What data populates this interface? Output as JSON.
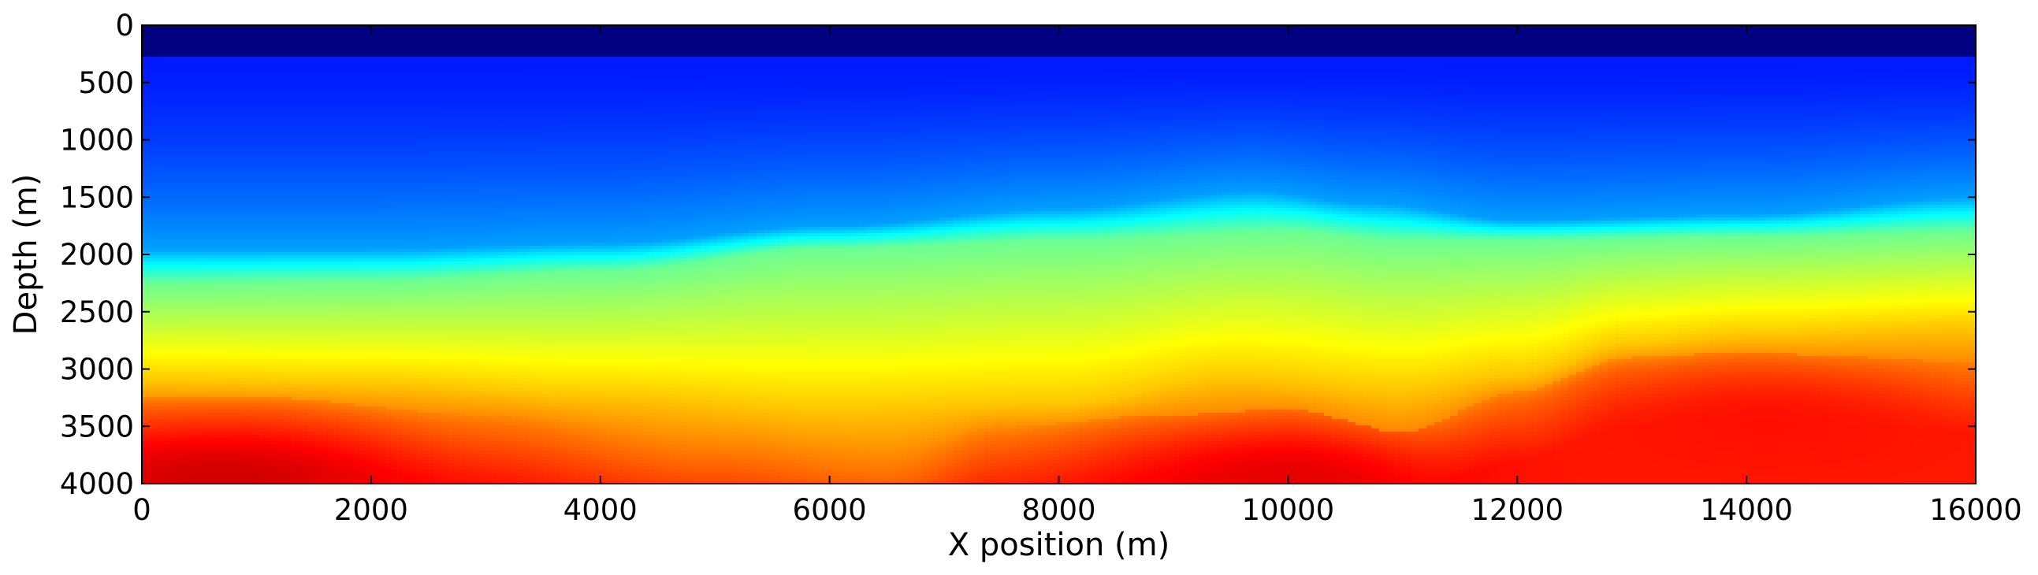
{
  "chart_data": {
    "type": "heatmap",
    "title": "",
    "xlabel": "X position (m)",
    "ylabel": "Depth (m)",
    "xlim": [
      0,
      16000
    ],
    "ylim": [
      4000,
      0
    ],
    "y_inverted": true,
    "grid": false,
    "colorbar": false,
    "colormap": "jet",
    "x_ticks": [
      0,
      2000,
      4000,
      6000,
      8000,
      10000,
      12000,
      14000,
      16000
    ],
    "y_ticks": [
      0,
      500,
      1000,
      1500,
      2000,
      2500,
      3000,
      3500,
      4000
    ],
    "x_tick_labels": [
      "0",
      "2000",
      "4000",
      "6000",
      "8000",
      "10000",
      "12000",
      "14000",
      "16000"
    ],
    "y_tick_labels": [
      "0",
      "500",
      "1000",
      "1500",
      "2000",
      "2500",
      "3000",
      "3500",
      "4000"
    ],
    "water_layer_depth": 280,
    "color_levels": {
      "water": 0.0,
      "shallow_blue": 0.15,
      "cyan_interface": 0.4,
      "green": 0.55,
      "yellow": 0.68,
      "deep_orange": 0.85
    },
    "interfaces": [
      {
        "name_meaning": "blue to cyan transition depth",
        "x": [
          0,
          2000,
          4000,
          6000,
          8000,
          9700,
          10700,
          12000,
          14000,
          16000
        ],
        "depth": [
          1950,
          1950,
          1900,
          1750,
          1600,
          1450,
          1550,
          1700,
          1650,
          1500
        ]
      },
      {
        "name_meaning": "cyan to green transition depth",
        "x": [
          0,
          2000,
          4000,
          6000,
          8000,
          10000,
          11000,
          12000,
          14000,
          16000
        ],
        "depth": [
          2250,
          2230,
          2150,
          1950,
          1880,
          1800,
          1880,
          1880,
          1850,
          1800
        ]
      },
      {
        "name_meaning": "green to yellow transition depth",
        "x": [
          0,
          2000,
          4000,
          6000,
          8000,
          9500,
          11000,
          12000,
          13000,
          14000,
          16000
        ],
        "depth": [
          3100,
          3130,
          3230,
          3350,
          3300,
          3080,
          3180,
          3050,
          2780,
          2700,
          2630
        ]
      },
      {
        "name_meaning": "yellow to orange transition depth",
        "x": [
          0,
          1000,
          3000,
          5000,
          6500,
          7500,
          9000,
          10000,
          11000,
          12000,
          13000,
          14000,
          15000,
          16000
        ],
        "depth": [
          3350,
          3350,
          3500,
          3750,
          3900,
          3600,
          3500,
          3450,
          3650,
          3300,
          3000,
          2950,
          3000,
          3050
        ]
      }
    ],
    "deep_lows": [
      {
        "x": 700,
        "depth": 4000,
        "value": 0.92
      },
      {
        "x": 10000,
        "depth": 4000,
        "value": 0.9
      },
      {
        "x": 14200,
        "depth": 3500,
        "value": 0.86
      }
    ]
  }
}
